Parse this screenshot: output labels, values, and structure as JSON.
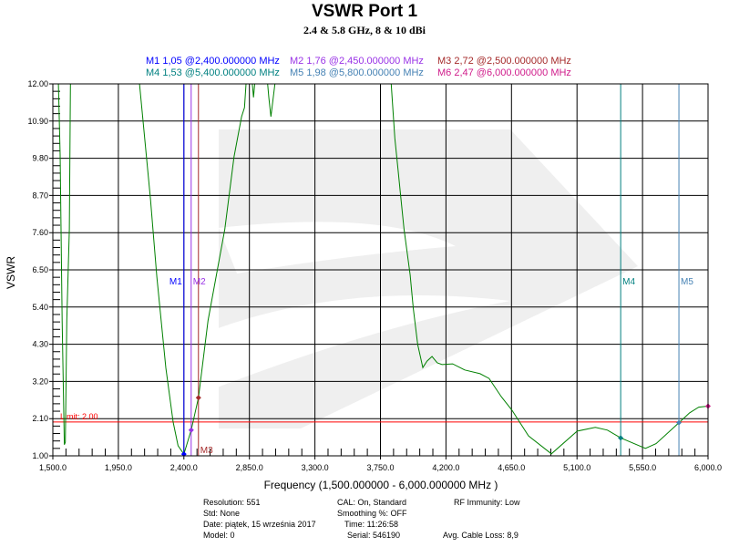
{
  "chart_data": {
    "type": "line",
    "title": "VSWR Port 1",
    "subtitle": "2.4 & 5.8 GHz, 8 & 10 dBi",
    "xlabel": "Frequency (1,500.000000 - 6,000.000000 MHz )",
    "ylabel": "VSWR",
    "xlim": [
      1500,
      6000
    ],
    "ylim": [
      1.0,
      12.0
    ],
    "grid": true,
    "x_ticks": [
      "1,500.0",
      "1,950.0",
      "2,400.0",
      "2,850.0",
      "3,300.0",
      "3,750.0",
      "4,200.0",
      "4,650.0",
      "5,100.0",
      "5,550.0",
      "6,000.0"
    ],
    "y_ticks": [
      "1.00",
      "2.10",
      "3.20",
      "4.30",
      "5.40",
      "6.50",
      "7.60",
      "8.70",
      "9.80",
      "10.90",
      "12.00"
    ],
    "limit": {
      "label": "Limit: 2.00",
      "value": 2.0,
      "color": "#ff0000"
    },
    "series_color": "#008000",
    "x": [
      1500,
      1538,
      1550,
      1564,
      1579,
      1586,
      1596,
      1613,
      1621,
      2095,
      2170,
      2214,
      2276,
      2326,
      2360,
      2400,
      2450,
      2500,
      2566,
      2681,
      2744,
      2796,
      2816,
      2827,
      2870,
      2878,
      2886,
      2975,
      2983,
      2998,
      3025,
      3824,
      3849,
      3870,
      3891,
      3912,
      3954,
      3975,
      4006,
      4041,
      4070,
      4104,
      4140,
      4173,
      4246,
      4329,
      4434,
      4496,
      4580,
      4653,
      4767,
      4924,
      5101,
      5226,
      5309,
      5400,
      5570,
      5643,
      5800,
      5873,
      5936,
      6000
    ],
    "y": [
      12,
      12,
      9.9,
      5.0,
      1.33,
      1.4,
      5.0,
      7.7,
      12,
      12,
      8.6,
      6.3,
      3.6,
      2.0,
      1.3,
      1.05,
      1.76,
      2.72,
      5.0,
      7.7,
      9.84,
      11.03,
      11.3,
      12,
      12,
      11.6,
      12,
      12,
      11.6,
      11.03,
      12,
      12,
      10.39,
      9.49,
      8.6,
      7.7,
      6.35,
      5.37,
      4.29,
      3.61,
      3.8,
      3.94,
      3.75,
      3.7,
      3.72,
      3.54,
      3.43,
      3.29,
      2.75,
      2.35,
      1.59,
      1.06,
      1.73,
      1.84,
      1.76,
      1.53,
      1.22,
      1.36,
      1.98,
      2.27,
      2.44,
      2.47
    ],
    "markers": [
      {
        "name": "M1",
        "text": "M1  1,05 @2,400.000000 MHz",
        "freq": 2400,
        "value": 1.05,
        "color": "#0000ff",
        "label_pos": "mid"
      },
      {
        "name": "M2",
        "text": "M2  1,76 @2,450.000000 MHz",
        "freq": 2450,
        "value": 1.76,
        "color": "#9932e6",
        "label_pos": "mid"
      },
      {
        "name": "M3",
        "text": "M3  2,72 @2,500.000000 MHz",
        "freq": 2500,
        "value": 2.72,
        "color": "#a52a2a",
        "label_pos": "bottom"
      },
      {
        "name": "M4",
        "text": "M4  1,53 @5,400.000000 MHz",
        "freq": 5400,
        "value": 1.53,
        "color": "#008080",
        "label_pos": "mid"
      },
      {
        "name": "M5",
        "text": "M5  1,98 @5,800.000000 MHz",
        "freq": 5800,
        "value": 1.98,
        "color": "#4682b4",
        "label_pos": "mid"
      },
      {
        "name": "M6",
        "text": "M6  2,47 @6,000.000000 MHz",
        "freq": 6000,
        "value": 2.47,
        "color": "#d01c8b",
        "label_pos": "none"
      }
    ]
  },
  "info": {
    "resolution": "Resolution: 551",
    "std": "Std: None",
    "date": "Date: piątek, 15 września 2017",
    "model": "Model: 0",
    "cal": "CAL: On, Standard",
    "smoothing": "Smoothing %:  OFF",
    "time": "Time: 11:26:58",
    "serial": "Serial: 546190",
    "rf_immunity": "RF Immunity: Low",
    "cable_loss": "Avg. Cable Loss: 8,9"
  }
}
